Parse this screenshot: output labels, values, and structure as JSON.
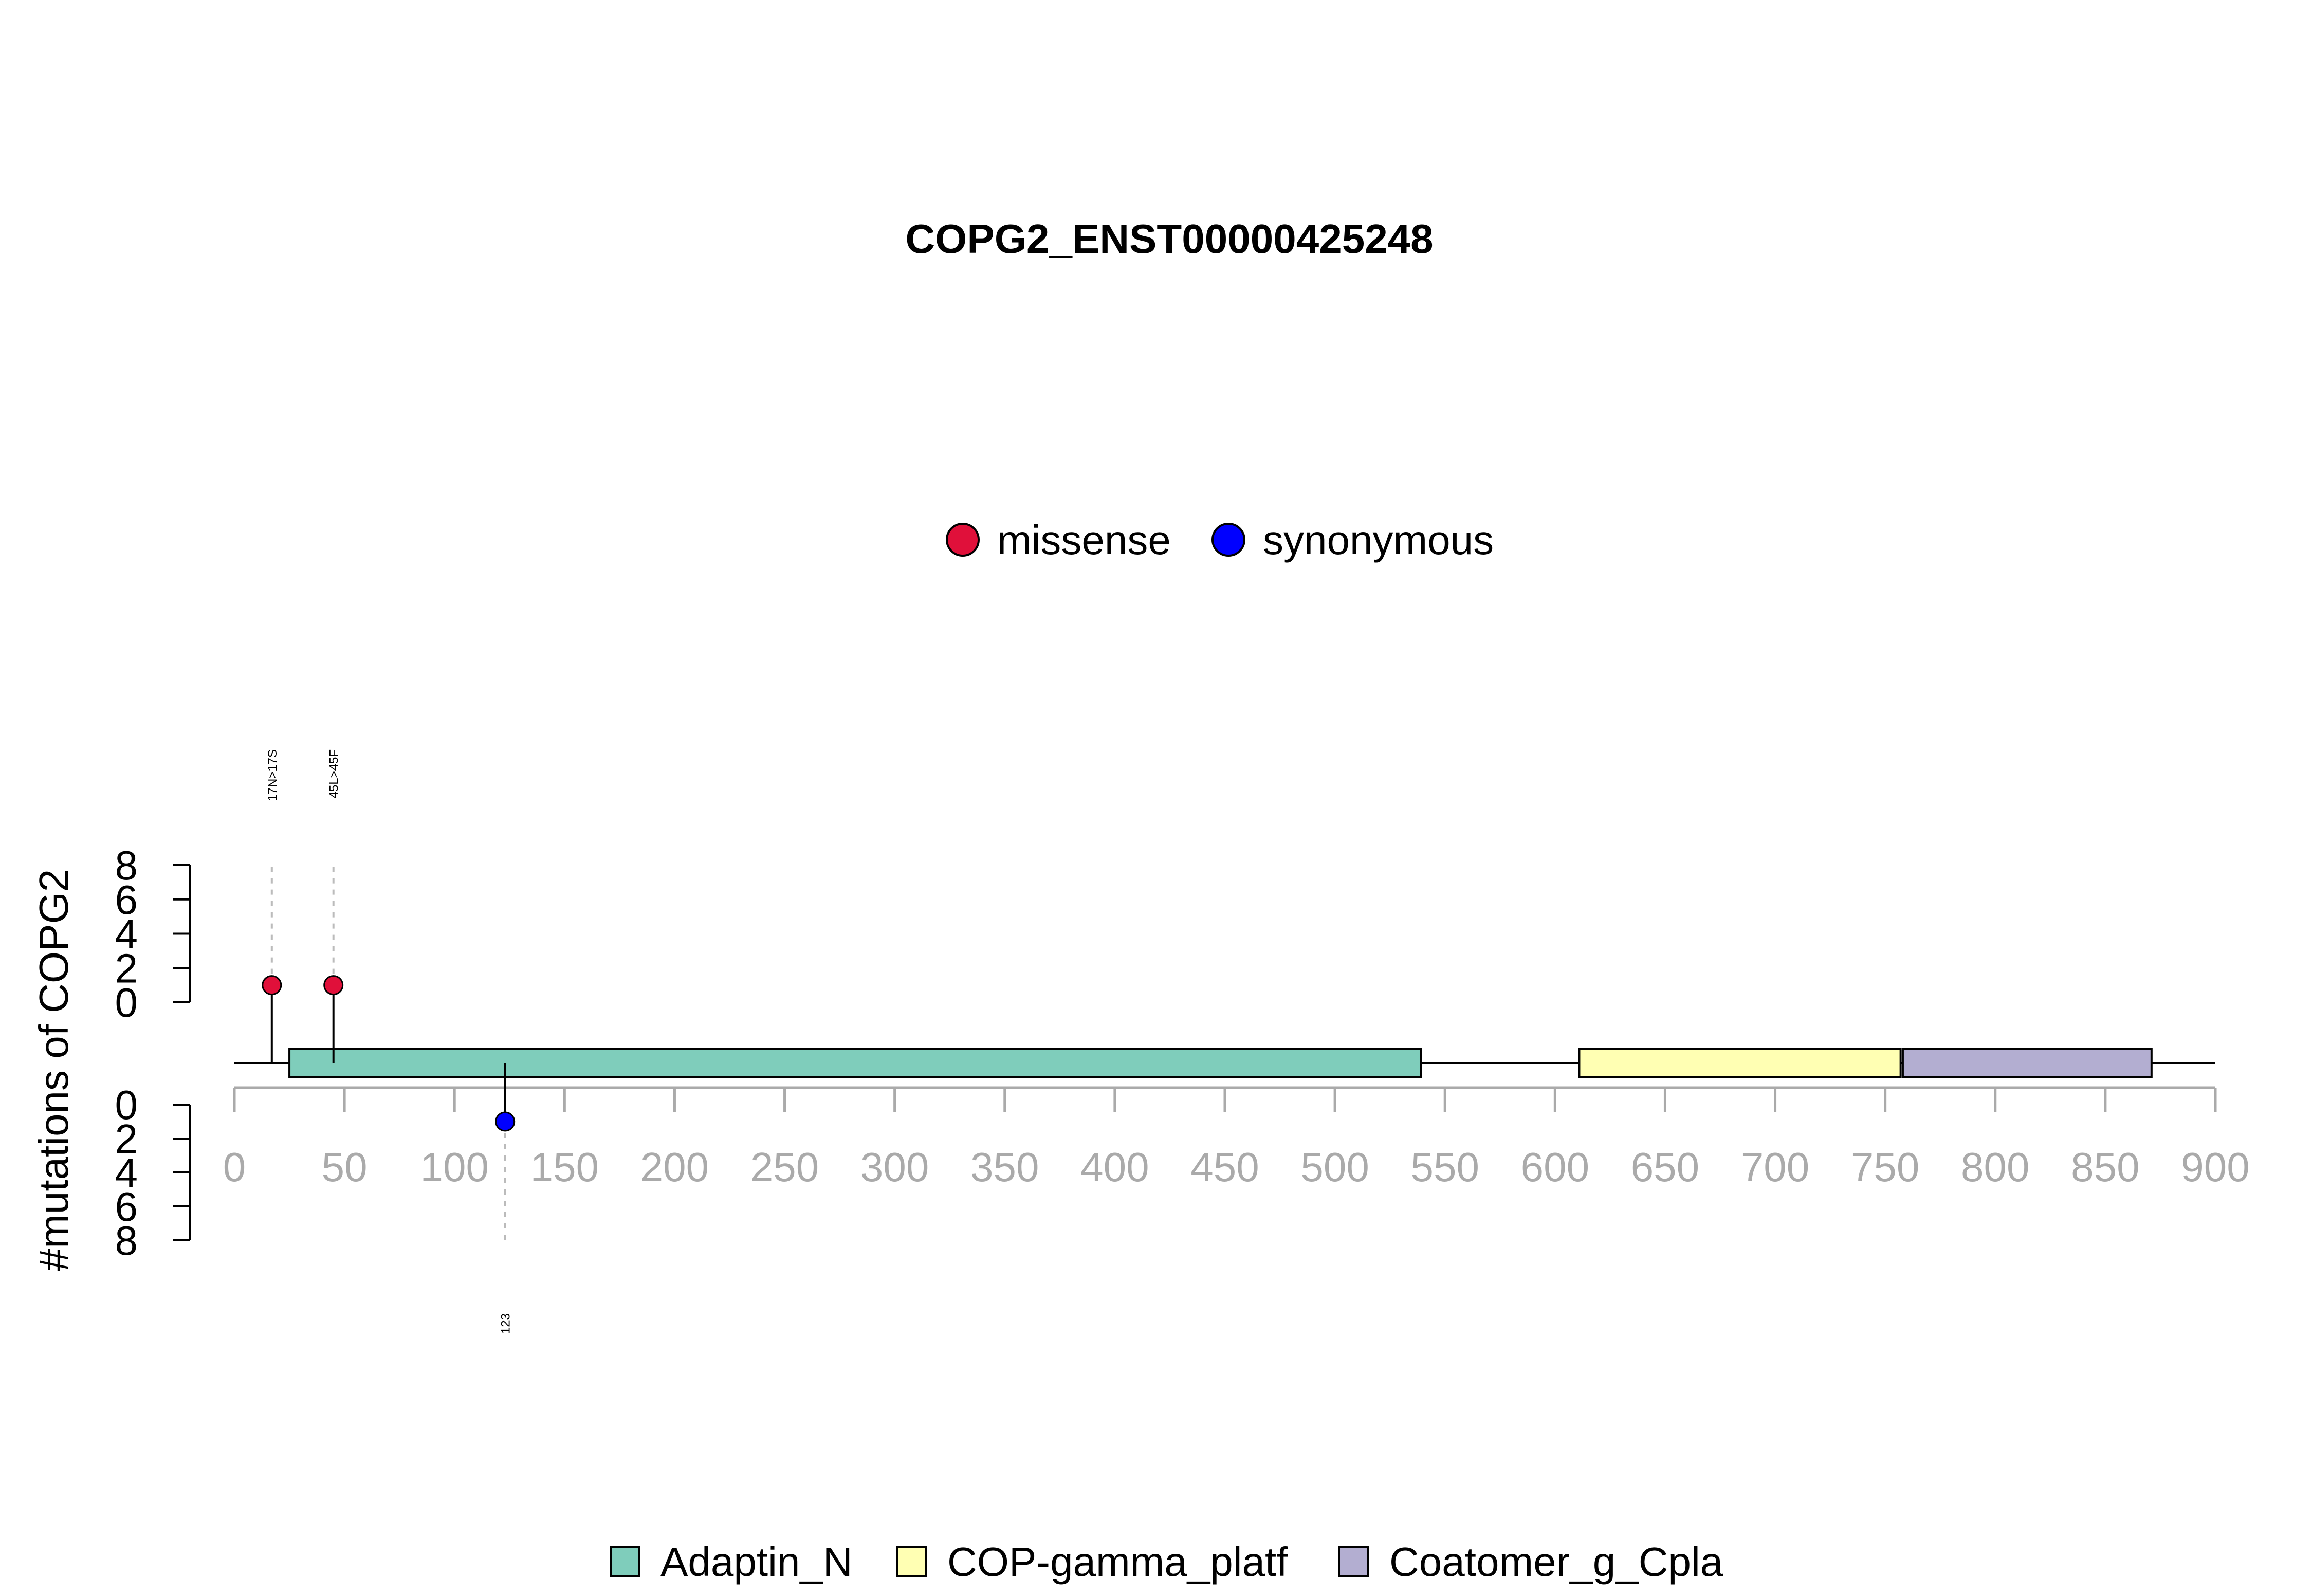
{
  "chart_data": {
    "type": "lollipop",
    "title": "COPG2_ENST00000425248",
    "ylabel": "#mutations of COPG2",
    "protein_length": 871,
    "x_axis": {
      "range": [
        0,
        900
      ],
      "ticks": [
        0,
        50,
        100,
        150,
        200,
        250,
        300,
        350,
        400,
        450,
        500,
        550,
        600,
        650,
        700,
        750,
        800,
        850,
        900
      ],
      "tick_labels": [
        "0",
        "50",
        "100",
        "150",
        "200",
        "250",
        "300",
        "350",
        "400",
        "450",
        "500",
        "550",
        "600",
        "650",
        "700",
        "750",
        "800",
        "850",
        "900"
      ],
      "color": "#aaaaaa"
    },
    "y_axis_upper": {
      "range": [
        0,
        8
      ],
      "ticks": [
        0,
        2,
        4,
        6,
        8
      ],
      "tick_labels": [
        "0",
        "2",
        "4",
        "6",
        "8"
      ]
    },
    "y_axis_lower": {
      "range": [
        0,
        8
      ],
      "ticks": [
        0,
        2,
        4,
        6,
        8
      ],
      "tick_labels": [
        "0",
        "2",
        "4",
        "6",
        "8"
      ]
    },
    "mutation_legend": [
      {
        "name": "missense",
        "color": "#e0103a"
      },
      {
        "name": "synonymous",
        "color": "#0000ff"
      }
    ],
    "mutations_upper": [
      {
        "position": 17,
        "count": 1,
        "type": "missense",
        "color": "#e0103a",
        "label": "17N>17S"
      },
      {
        "position": 45,
        "count": 1,
        "type": "missense",
        "color": "#e0103a",
        "label": "45L>45F"
      }
    ],
    "mutations_lower": [
      {
        "position": 123,
        "count": 1,
        "type": "synonymous",
        "color": "#0000ff",
        "label": "123"
      }
    ],
    "domains": [
      {
        "name": "Adaptin_N",
        "start": 25,
        "end": 539,
        "color": "#7fcdbb"
      },
      {
        "name": "COP-gamma_platf",
        "start": 611,
        "end": 757,
        "color": "#ffffb3"
      },
      {
        "name": "Coatomer_g_Cpla",
        "start": 758,
        "end": 871,
        "color": "#b3aed1"
      }
    ],
    "grid": false,
    "legend_placement": "top-center (mutation types) and bottom-center (domains)"
  }
}
